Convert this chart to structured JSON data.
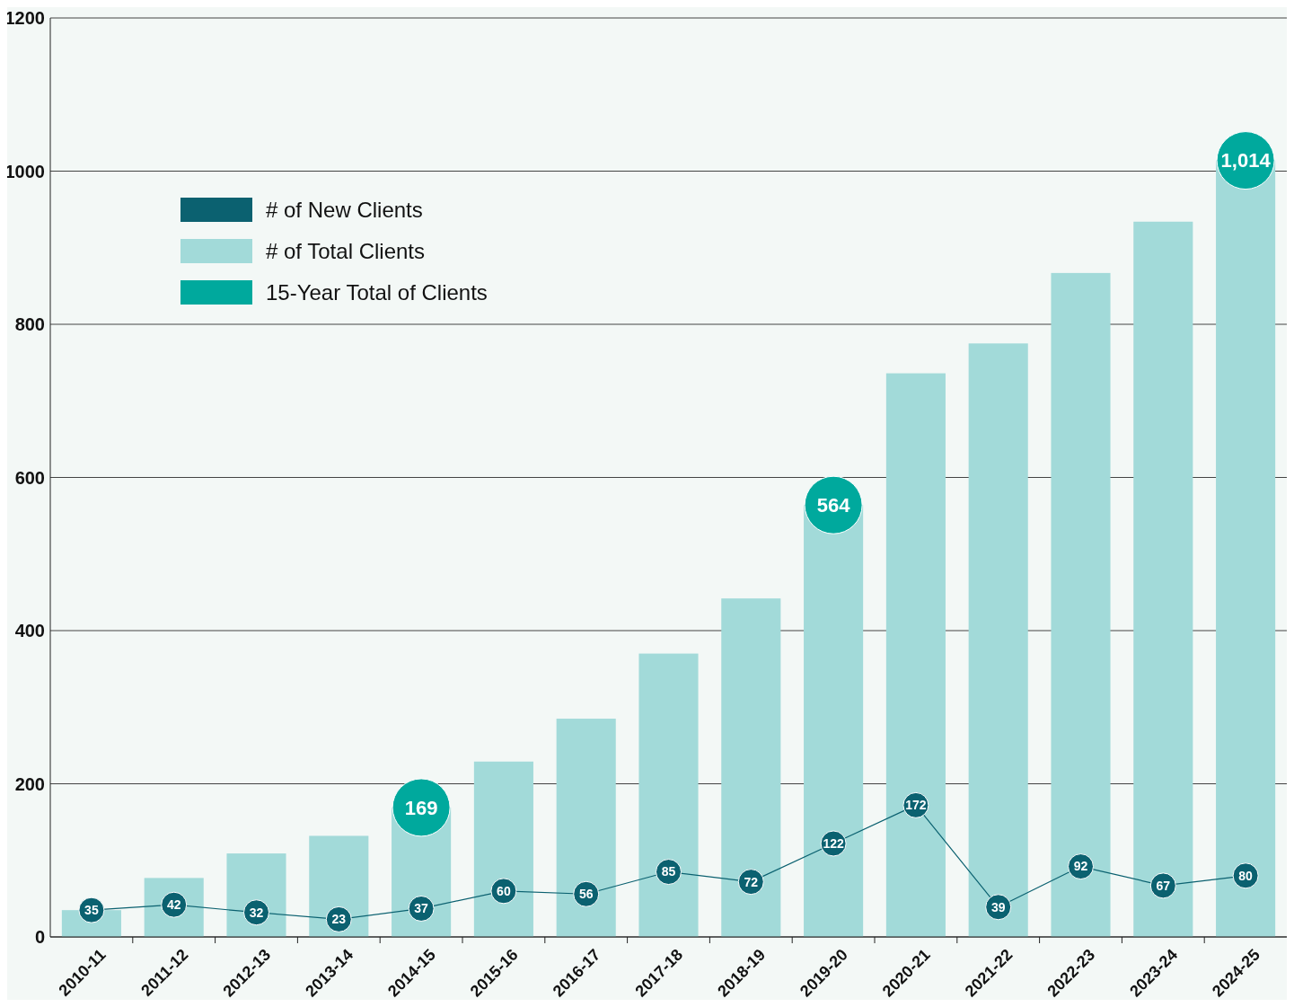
{
  "chart_data": {
    "type": "bar",
    "categories": [
      "2010-11",
      "2011-12",
      "2012-13",
      "2013-14",
      "2014-15",
      "2015-16",
      "2016-17",
      "2017-18",
      "2018-19",
      "2019-20",
      "2020-21",
      "2021-22",
      "2022-23",
      "2023-24",
      "2024-25"
    ],
    "series": [
      {
        "name": "# of New Clients",
        "type": "line",
        "color": "#0b6170",
        "values": [
          35,
          42,
          32,
          23,
          37,
          60,
          56,
          85,
          72,
          122,
          172,
          39,
          92,
          67,
          80
        ],
        "value_labels": [
          "35",
          "42",
          "32",
          "23",
          "37",
          "60",
          "56",
          "85",
          "72",
          "122",
          "172",
          "39",
          "92",
          "67",
          "80"
        ]
      },
      {
        "name": "# of Total Clients",
        "color": "#a2dad9",
        "values": [
          35,
          77,
          109,
          132,
          169,
          229,
          285,
          370,
          442,
          564,
          736,
          775,
          867,
          934,
          1014
        ]
      },
      {
        "name": "15-Year Total of Clients",
        "type": "scatter",
        "color": "#00a99d",
        "values": [
          null,
          null,
          null,
          null,
          169,
          null,
          null,
          null,
          null,
          564,
          null,
          null,
          null,
          null,
          1014
        ],
        "value_labels": [
          null,
          null,
          null,
          null,
          "169",
          null,
          null,
          null,
          null,
          "564",
          null,
          null,
          null,
          null,
          "1,014"
        ]
      }
    ],
    "ylim": [
      0,
      1200
    ],
    "yticks": [
      0,
      200,
      400,
      600,
      800,
      1000,
      1200
    ],
    "grid": "y",
    "legend": "top left",
    "marker": "circle",
    "line_style": "solid"
  }
}
